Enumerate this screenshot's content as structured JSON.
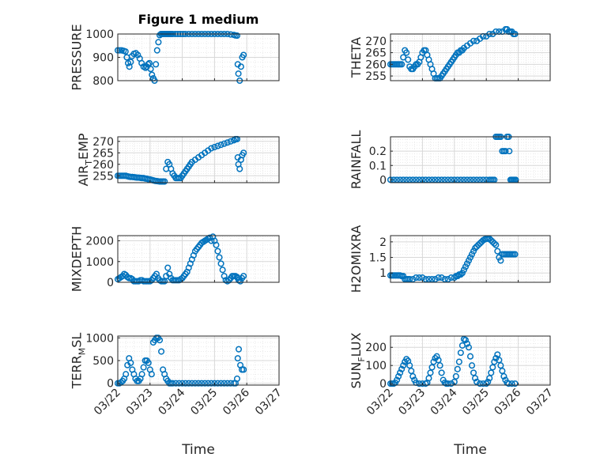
{
  "figure": {
    "title": "Figure 1 medium",
    "xlabel": "Time"
  },
  "chart_data": [
    {
      "type": "scatter",
      "ylabel": "PRESSURE",
      "ylim": [
        800,
        1000
      ],
      "yticks": [
        {
          "v": 800,
          "label": "800"
        },
        {
          "v": 900,
          "label": "900"
        },
        {
          "v": 1000,
          "label": "1000"
        }
      ],
      "xlim": [
        0,
        5
      ],
      "xticks": [
        "03/22",
        "03/23",
        "03/24",
        "03/25",
        "03/26",
        "03/27"
      ],
      "show_xticklabels": false,
      "marker_color": "#0072BD",
      "grid": true,
      "x": [
        0,
        0.06,
        0.12,
        0.18,
        0.24,
        0.28,
        0.32,
        0.36,
        0.4,
        0.44,
        0.5,
        0.56,
        0.62,
        0.68,
        0.74,
        0.8,
        0.86,
        0.9,
        0.94,
        0.98,
        1.02,
        1.06,
        1.1,
        1.14,
        1.18,
        1.22,
        1.26,
        1.3,
        1.34,
        1.38,
        1.42,
        1.46,
        1.5,
        1.54,
        1.58,
        1.62,
        1.66,
        1.7,
        1.78,
        1.86,
        1.94,
        2.02,
        2.1,
        2.2,
        2.3,
        2.4,
        2.5,
        2.6,
        2.7,
        2.8,
        2.9,
        3.0,
        3.1,
        3.2,
        3.3,
        3.4,
        3.5,
        3.6,
        3.65,
        3.7,
        3.72,
        3.74,
        3.78,
        3.82,
        3.86,
        3.9
      ],
      "y": [
        930,
        930,
        930,
        928,
        925,
        900,
        875,
        860,
        880,
        905,
        915,
        918,
        910,
        895,
        875,
        860,
        855,
        860,
        870,
        875,
        850,
        825,
        810,
        800,
        870,
        930,
        965,
        995,
        1000,
        1000,
        1000,
        1000,
        1000,
        1000,
        1000,
        1000,
        1000,
        1000,
        1000,
        1000,
        1000,
        1000,
        1000,
        1000,
        1000,
        1000,
        1000,
        1000,
        1000,
        1000,
        1000,
        1000,
        1000,
        1000,
        1000,
        1000,
        998,
        996,
        994,
        993,
        870,
        830,
        800,
        860,
        900,
        910
      ]
    },
    {
      "type": "scatter",
      "ylabel": "THETA",
      "ylim": [
        253,
        273
      ],
      "yticks": [
        {
          "v": 255,
          "label": "255"
        },
        {
          "v": 260,
          "label": "260"
        },
        {
          "v": 265,
          "label": "265"
        },
        {
          "v": 270,
          "label": "270"
        }
      ],
      "xlim": [
        0,
        5
      ],
      "xticks": [
        "03/22",
        "03/23",
        "03/24",
        "03/25",
        "03/26",
        "03/27"
      ],
      "show_xticklabels": false,
      "marker_color": "#0072BD",
      "grid": true,
      "x": [
        0,
        0.05,
        0.1,
        0.15,
        0.2,
        0.25,
        0.3,
        0.35,
        0.4,
        0.45,
        0.5,
        0.55,
        0.6,
        0.65,
        0.7,
        0.75,
        0.8,
        0.85,
        0.9,
        0.95,
        1.0,
        1.05,
        1.1,
        1.15,
        1.2,
        1.25,
        1.3,
        1.35,
        1.4,
        1.45,
        1.5,
        1.55,
        1.6,
        1.65,
        1.7,
        1.75,
        1.8,
        1.85,
        1.9,
        1.95,
        2.0,
        2.05,
        2.1,
        2.15,
        2.2,
        2.25,
        2.3,
        2.4,
        2.5,
        2.6,
        2.7,
        2.8,
        2.9,
        3.0,
        3.1,
        3.2,
        3.3,
        3.4,
        3.5,
        3.6,
        3.65,
        3.7,
        3.75,
        3.8,
        3.85,
        3.9
      ],
      "y": [
        260,
        260,
        260,
        260,
        260,
        260,
        260,
        260,
        263,
        266,
        265,
        262,
        259,
        258,
        258,
        259,
        260,
        260,
        261,
        263,
        265,
        266,
        266,
        264,
        262,
        260,
        258,
        256,
        254,
        254,
        254,
        254,
        255,
        256,
        257,
        258,
        259,
        260,
        261,
        262,
        263,
        264,
        265,
        265,
        266,
        266,
        267,
        268,
        269,
        270,
        270,
        271,
        272,
        272,
        273,
        273,
        274,
        274,
        274,
        275,
        275,
        274,
        274,
        274,
        273,
        273
      ]
    },
    {
      "type": "scatter",
      "ylabel": "AIR_TEMP",
      "ylim": [
        252,
        272
      ],
      "yticks": [
        {
          "v": 255,
          "label": "255"
        },
        {
          "v": 260,
          "label": "260"
        },
        {
          "v": 265,
          "label": "265"
        },
        {
          "v": 270,
          "label": "270"
        }
      ],
      "xlim": [
        0,
        5
      ],
      "xticks": [
        "03/22",
        "03/23",
        "03/24",
        "03/25",
        "03/26",
        "03/27"
      ],
      "show_xticklabels": false,
      "marker_color": "#0072BD",
      "grid": true,
      "x": [
        0,
        0.05,
        0.1,
        0.15,
        0.2,
        0.25,
        0.3,
        0.35,
        0.4,
        0.45,
        0.5,
        0.55,
        0.6,
        0.65,
        0.7,
        0.75,
        0.8,
        0.85,
        0.9,
        0.95,
        1.0,
        1.05,
        1.1,
        1.15,
        1.2,
        1.25,
        1.3,
        1.35,
        1.4,
        1.45,
        1.5,
        1.55,
        1.6,
        1.65,
        1.7,
        1.75,
        1.8,
        1.85,
        1.9,
        1.95,
        2.0,
        2.05,
        2.1,
        2.15,
        2.2,
        2.25,
        2.3,
        2.4,
        2.5,
        2.6,
        2.7,
        2.8,
        2.9,
        3.0,
        3.1,
        3.2,
        3.3,
        3.4,
        3.5,
        3.6,
        3.65,
        3.7,
        3.72,
        3.74,
        3.78,
        3.82,
        3.86,
        3.9
      ],
      "y": [
        255,
        255,
        255,
        255,
        255,
        255,
        254.8,
        254.6,
        254.5,
        254.5,
        254.4,
        254.3,
        254.2,
        254.2,
        254.1,
        254,
        254,
        253.8,
        253.7,
        253.5,
        253.4,
        253.2,
        253,
        252.8,
        252.7,
        252.6,
        252.5,
        252.5,
        252.5,
        252.5,
        258,
        261,
        260,
        258,
        256,
        255,
        254,
        254,
        254,
        254,
        255,
        256,
        257,
        258,
        259,
        260,
        261,
        262,
        263,
        264,
        265,
        266,
        267,
        267.5,
        268,
        268.5,
        269,
        269.5,
        270,
        270.5,
        271,
        271,
        263,
        260,
        258,
        262,
        264,
        265
      ]
    },
    {
      "type": "scatter",
      "ylabel": "RAINFALL",
      "ylim": [
        -0.02,
        0.3
      ],
      "yticks": [
        {
          "v": 0,
          "label": "0"
        },
        {
          "v": 0.1,
          "label": "0.1"
        },
        {
          "v": 0.2,
          "label": "0.2"
        }
      ],
      "xlim": [
        0,
        5
      ],
      "xticks": [
        "03/22",
        "03/23",
        "03/24",
        "03/25",
        "03/26",
        "03/27"
      ],
      "show_xticklabels": false,
      "marker_color": "#0072BD",
      "grid": true,
      "x": [
        0,
        0.1,
        0.2,
        0.3,
        0.4,
        0.5,
        0.6,
        0.7,
        0.8,
        0.9,
        1.0,
        1.1,
        1.2,
        1.3,
        1.4,
        1.5,
        1.6,
        1.7,
        1.8,
        1.9,
        2.0,
        2.1,
        2.2,
        2.3,
        2.4,
        2.5,
        2.6,
        2.7,
        2.8,
        2.9,
        3.0,
        3.1,
        3.15,
        3.2,
        3.25,
        3.3,
        3.35,
        3.4,
        3.45,
        3.5,
        3.55,
        3.6,
        3.65,
        3.7,
        3.72,
        3.76,
        3.8,
        3.84,
        3.88,
        3.92
      ],
      "y": [
        0,
        0,
        0,
        0,
        0,
        0,
        0,
        0,
        0,
        0,
        0,
        0,
        0,
        0,
        0,
        0,
        0,
        0,
        0,
        0,
        0,
        0,
        0,
        0,
        0,
        0,
        0,
        0,
        0,
        0,
        0,
        0,
        0,
        0,
        0,
        0.3,
        0.3,
        0.3,
        0.3,
        0.2,
        0.2,
        0.2,
        0.3,
        0.3,
        0.2,
        0,
        0,
        0,
        0,
        0
      ]
    },
    {
      "type": "scatter",
      "ylabel": "MIXDEPTH",
      "ylim": [
        0,
        2250
      ],
      "yticks": [
        {
          "v": 0,
          "label": "0"
        },
        {
          "v": 1000,
          "label": "1000"
        },
        {
          "v": 2000,
          "label": "2000"
        }
      ],
      "xlim": [
        0,
        5
      ],
      "xticks": [
        "03/22",
        "03/23",
        "03/24",
        "03/25",
        "03/26",
        "03/27"
      ],
      "show_xticklabels": false,
      "marker_color": "#0072BD",
      "grid": true,
      "x": [
        0,
        0.05,
        0.1,
        0.15,
        0.2,
        0.25,
        0.3,
        0.35,
        0.4,
        0.45,
        0.5,
        0.55,
        0.6,
        0.65,
        0.7,
        0.75,
        0.8,
        0.85,
        0.9,
        0.95,
        1.0,
        1.05,
        1.1,
        1.15,
        1.2,
        1.25,
        1.3,
        1.35,
        1.4,
        1.45,
        1.5,
        1.55,
        1.6,
        1.65,
        1.7,
        1.75,
        1.8,
        1.85,
        1.9,
        1.95,
        2.0,
        2.05,
        2.1,
        2.15,
        2.2,
        2.25,
        2.3,
        2.35,
        2.4,
        2.45,
        2.5,
        2.55,
        2.6,
        2.65,
        2.7,
        2.75,
        2.8,
        2.85,
        2.9,
        2.95,
        3.0,
        3.05,
        3.1,
        3.15,
        3.2,
        3.25,
        3.3,
        3.35,
        3.4,
        3.45,
        3.5,
        3.55,
        3.6,
        3.65,
        3.7,
        3.72,
        3.75,
        3.8,
        3.85,
        3.9
      ],
      "y": [
        150,
        200,
        250,
        300,
        400,
        350,
        250,
        200,
        200,
        150,
        50,
        50,
        50,
        50,
        100,
        100,
        50,
        50,
        50,
        50,
        50,
        100,
        200,
        300,
        400,
        200,
        100,
        50,
        50,
        50,
        300,
        700,
        400,
        200,
        100,
        100,
        100,
        100,
        100,
        150,
        200,
        300,
        400,
        500,
        700,
        900,
        1100,
        1300,
        1500,
        1600,
        1700,
        1800,
        1900,
        1950,
        2000,
        2050,
        2100,
        2150,
        2000,
        2200,
        2000,
        1800,
        1500,
        1200,
        900,
        600,
        300,
        100,
        50,
        100,
        200,
        300,
        300,
        300,
        250,
        200,
        100,
        50,
        200,
        300
      ]
    },
    {
      "type": "scatter",
      "ylabel": "H2OMIXRA",
      "ylim": [
        0.7,
        2.2
      ],
      "yticks": [
        {
          "v": 1,
          "label": "1"
        },
        {
          "v": 1.5,
          "label": "1.5"
        },
        {
          "v": 2,
          "label": "2"
        }
      ],
      "xlim": [
        0,
        5
      ],
      "xticks": [
        "03/22",
        "03/23",
        "03/24",
        "03/25",
        "03/26",
        "03/27"
      ],
      "show_xticklabels": false,
      "marker_color": "#0072BD",
      "grid": true,
      "x": [
        0,
        0.05,
        0.1,
        0.15,
        0.2,
        0.25,
        0.3,
        0.35,
        0.4,
        0.45,
        0.5,
        0.55,
        0.6,
        0.7,
        0.8,
        0.9,
        1.0,
        1.1,
        1.2,
        1.3,
        1.4,
        1.5,
        1.6,
        1.7,
        1.8,
        1.9,
        2.0,
        2.05,
        2.1,
        2.15,
        2.2,
        2.25,
        2.3,
        2.35,
        2.4,
        2.45,
        2.5,
        2.55,
        2.6,
        2.65,
        2.7,
        2.75,
        2.8,
        2.85,
        2.9,
        2.95,
        3.0,
        3.05,
        3.1,
        3.15,
        3.2,
        3.25,
        3.3,
        3.35,
        3.4,
        3.45,
        3.5,
        3.55,
        3.6,
        3.65,
        3.7,
        3.75,
        3.8,
        3.85,
        3.9
      ],
      "y": [
        0.92,
        0.92,
        0.92,
        0.92,
        0.92,
        0.92,
        0.92,
        0.9,
        0.9,
        0.8,
        0.8,
        0.8,
        0.8,
        0.8,
        0.85,
        0.85,
        0.85,
        0.8,
        0.8,
        0.8,
        0.8,
        0.85,
        0.85,
        0.8,
        0.8,
        0.85,
        0.85,
        0.9,
        0.9,
        0.95,
        0.95,
        1.0,
        1.1,
        1.2,
        1.3,
        1.4,
        1.5,
        1.6,
        1.7,
        1.8,
        1.85,
        1.9,
        1.95,
        2.0,
        2.05,
        2.08,
        2.1,
        2.1,
        2.1,
        2.05,
        2.0,
        1.95,
        1.9,
        1.7,
        1.5,
        1.4,
        1.6,
        1.6,
        1.6,
        1.6,
        1.6,
        1.6,
        1.6,
        1.6,
        1.6
      ]
    },
    {
      "type": "scatter",
      "ylabel": "TERR_MSL",
      "ylim": [
        -40,
        1040
      ],
      "yticks": [
        {
          "v": 0,
          "label": "0"
        },
        {
          "v": 500,
          "label": "500"
        },
        {
          "v": 1000,
          "label": "1000"
        }
      ],
      "xlim": [
        0,
        5
      ],
      "xticks": [
        "03/22",
        "03/23",
        "03/24",
        "03/25",
        "03/26",
        "03/27"
      ],
      "show_xticklabels": true,
      "marker_color": "#0072BD",
      "grid": true,
      "x": [
        0,
        0.05,
        0.1,
        0.15,
        0.2,
        0.25,
        0.3,
        0.35,
        0.4,
        0.45,
        0.5,
        0.55,
        0.6,
        0.65,
        0.7,
        0.75,
        0.8,
        0.85,
        0.9,
        0.95,
        1.0,
        1.05,
        1.1,
        1.15,
        1.2,
        1.25,
        1.3,
        1.35,
        1.4,
        1.45,
        1.5,
        1.55,
        1.6,
        1.65,
        1.7,
        1.8,
        1.9,
        2.0,
        2.1,
        2.2,
        2.3,
        2.4,
        2.5,
        2.6,
        2.7,
        2.8,
        2.9,
        3.0,
        3.1,
        3.2,
        3.3,
        3.4,
        3.5,
        3.6,
        3.65,
        3.7,
        3.72,
        3.75,
        3.8,
        3.85,
        3.9
      ],
      "y": [
        0,
        0,
        20,
        50,
        100,
        200,
        400,
        550,
        450,
        300,
        200,
        100,
        50,
        50,
        100,
        200,
        350,
        500,
        500,
        450,
        300,
        200,
        900,
        950,
        1000,
        1000,
        950,
        700,
        300,
        200,
        100,
        50,
        0,
        0,
        0,
        0,
        0,
        0,
        0,
        0,
        0,
        0,
        0,
        0,
        0,
        0,
        0,
        0,
        0,
        0,
        0,
        0,
        0,
        0,
        0,
        100,
        550,
        750,
        400,
        300,
        300
      ]
    },
    {
      "type": "scatter",
      "ylabel": "SUN_FLUX",
      "ylim": [
        -8,
        262
      ],
      "yticks": [
        {
          "v": 0,
          "label": "0"
        },
        {
          "v": 100,
          "label": "100"
        },
        {
          "v": 200,
          "label": "200"
        }
      ],
      "xlim": [
        0,
        5
      ],
      "xticks": [
        "03/22",
        "03/23",
        "03/24",
        "03/25",
        "03/26",
        "03/27"
      ],
      "show_xticklabels": true,
      "marker_color": "#0072BD",
      "grid": true,
      "x": [
        0,
        0.05,
        0.1,
        0.15,
        0.2,
        0.25,
        0.3,
        0.35,
        0.4,
        0.45,
        0.5,
        0.55,
        0.6,
        0.65,
        0.7,
        0.75,
        0.8,
        0.9,
        1.0,
        1.1,
        1.15,
        1.2,
        1.25,
        1.3,
        1.35,
        1.4,
        1.45,
        1.5,
        1.55,
        1.6,
        1.65,
        1.7,
        1.75,
        1.8,
        1.9,
        2.0,
        2.05,
        2.1,
        2.15,
        2.2,
        2.25,
        2.3,
        2.35,
        2.4,
        2.45,
        2.5,
        2.55,
        2.6,
        2.65,
        2.7,
        2.8,
        2.9,
        3.0,
        3.05,
        3.1,
        3.15,
        3.2,
        3.25,
        3.3,
        3.35,
        3.4,
        3.45,
        3.5,
        3.55,
        3.6,
        3.65,
        3.7,
        3.8,
        3.9
      ],
      "y": [
        0,
        0,
        0,
        5,
        20,
        40,
        60,
        80,
        100,
        120,
        135,
        125,
        100,
        70,
        40,
        20,
        5,
        0,
        0,
        0,
        5,
        30,
        60,
        90,
        120,
        140,
        150,
        130,
        100,
        60,
        20,
        5,
        0,
        0,
        0,
        10,
        40,
        80,
        120,
        170,
        210,
        245,
        240,
        220,
        200,
        150,
        100,
        60,
        30,
        10,
        0,
        0,
        0,
        10,
        30,
        60,
        90,
        120,
        140,
        160,
        130,
        100,
        70,
        40,
        20,
        5,
        0,
        0,
        0
      ]
    }
  ]
}
